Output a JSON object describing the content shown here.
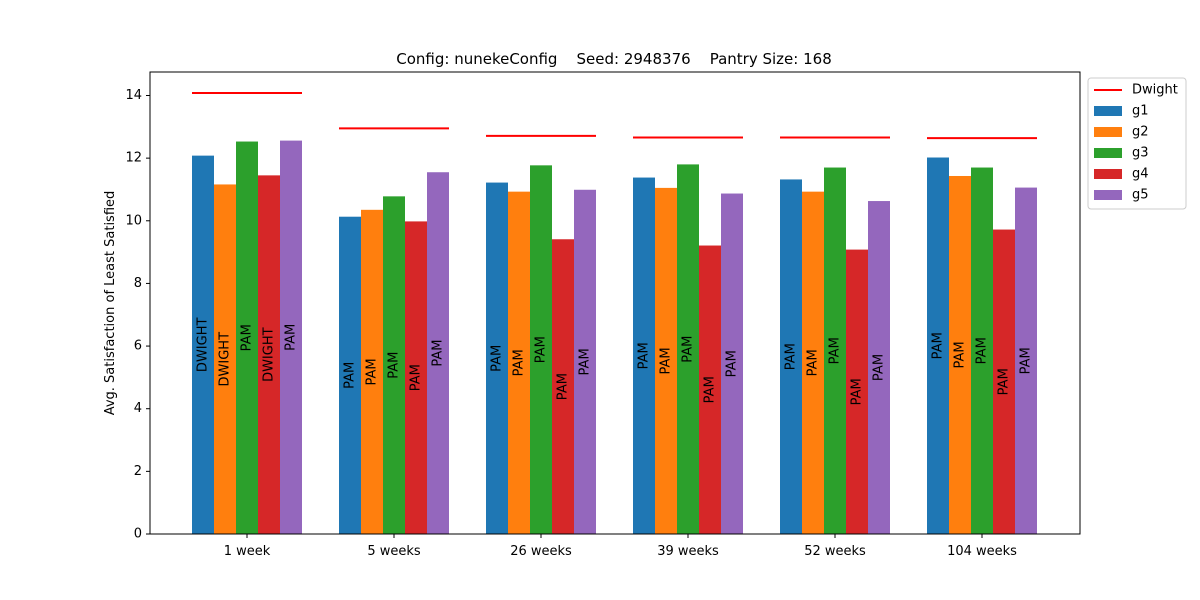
{
  "chart_data": {
    "type": "bar",
    "title": "Config: nunekeConfig    Seed: 2948376    Pantry Size: 168",
    "xlabel": "",
    "ylabel": "Avg. Satisfaction of Least Satisfied",
    "ylim": [
      0,
      14.75
    ],
    "yticks": [
      0,
      2,
      4,
      6,
      8,
      10,
      12,
      14
    ],
    "categories": [
      "1 week",
      "5 weeks",
      "26 weeks",
      "39 weeks",
      "52 weeks",
      "104 weeks"
    ],
    "series": [
      {
        "name": "g1",
        "color": "#1f77b4",
        "values": [
          12.08,
          10.13,
          11.22,
          11.38,
          11.32,
          12.02
        ],
        "bar_labels": [
          "DWIGHT",
          "PAM",
          "PAM",
          "PAM",
          "PAM",
          "PAM"
        ]
      },
      {
        "name": "g2",
        "color": "#ff7f0e",
        "values": [
          11.16,
          10.35,
          10.93,
          11.05,
          10.93,
          11.43
        ],
        "bar_labels": [
          "DWIGHT",
          "PAM",
          "PAM",
          "PAM",
          "PAM",
          "PAM"
        ]
      },
      {
        "name": "g3",
        "color": "#2ca02c",
        "values": [
          12.53,
          10.78,
          11.77,
          11.8,
          11.7,
          11.7
        ],
        "bar_labels": [
          "PAM",
          "PAM",
          "PAM",
          "PAM",
          "PAM",
          "PAM"
        ]
      },
      {
        "name": "g4",
        "color": "#d62728",
        "values": [
          11.45,
          9.98,
          9.41,
          9.21,
          9.08,
          9.72
        ],
        "bar_labels": [
          "DWIGHT",
          "PAM",
          "PAM",
          "PAM",
          "PAM",
          "PAM"
        ]
      },
      {
        "name": "g5",
        "color": "#9467bd",
        "values": [
          12.56,
          11.55,
          10.99,
          10.87,
          10.63,
          11.06
        ],
        "bar_labels": [
          "PAM",
          "PAM",
          "PAM",
          "PAM",
          "PAM",
          "PAM"
        ]
      }
    ],
    "reference_line": {
      "name": "Dwight",
      "color": "#ff0000",
      "values": [
        14.08,
        12.95,
        12.71,
        12.66,
        12.66,
        12.64
      ]
    },
    "legend": {
      "placement": "outside-right",
      "entries": [
        "Dwight",
        "g1",
        "g2",
        "g3",
        "g4",
        "g5"
      ]
    },
    "grid": false
  }
}
